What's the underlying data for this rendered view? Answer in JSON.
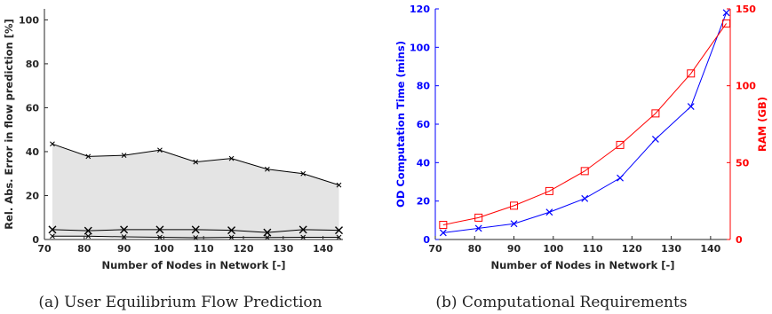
{
  "chart_data": [
    {
      "type": "area",
      "xlabel": "Number of Nodes in Network [-]",
      "ylabel": "Rel. Abs. Error in flow prediction [%]",
      "xlim": [
        70,
        145
      ],
      "ylim": [
        0,
        105
      ],
      "xticks": [
        70,
        80,
        90,
        100,
        110,
        120,
        130,
        140
      ],
      "yticks": [
        0,
        20,
        40,
        60,
        80,
        100
      ],
      "grid": false,
      "fill_color": "#e4e4e4",
      "line_color": "#000000",
      "x": [
        72,
        81,
        90,
        99,
        108,
        117,
        126,
        135,
        144
      ],
      "series": [
        {
          "marker": "x",
          "values": [
            43.5,
            37.8,
            38.3,
            40.7,
            35.3,
            36.9,
            32.0,
            30.0,
            24.8
          ]
        },
        {
          "marker": "x",
          "values": [
            4.5,
            4.0,
            4.5,
            4.5,
            4.5,
            4.2,
            3.2,
            4.5,
            4.2
          ]
        },
        {
          "marker": "x",
          "values": [
            1.5,
            1.5,
            1.2,
            1.0,
            0.8,
            1.0,
            0.9,
            1.0,
            1.0
          ]
        }
      ],
      "caption": "(a) User Equilibrium Flow Prediction"
    },
    {
      "type": "line",
      "xlabel": "Number of Nodes in Network [-]",
      "xlim": [
        70,
        145
      ],
      "xticks": [
        70,
        80,
        90,
        100,
        110,
        120,
        130,
        140
      ],
      "grid": false,
      "x": [
        72,
        81,
        90,
        99,
        108,
        117,
        126,
        135,
        144
      ],
      "left_axis": {
        "label": "OD Computation Time (mins)",
        "ylim": [
          0,
          120
        ],
        "ticks": [
          0,
          20,
          40,
          60,
          80,
          100,
          120
        ],
        "color": "#0000ff"
      },
      "right_axis": {
        "label": "RAM (GB)",
        "ylim": [
          0,
          150
        ],
        "ticks": [
          0,
          50,
          100,
          150
        ],
        "color": "#ff0000"
      },
      "series": [
        {
          "axis": "left",
          "marker": "x",
          "color": "#0000ff",
          "values": [
            3.5,
            5.8,
            8.2,
            14.2,
            21.3,
            32.0,
            52.2,
            69.2,
            118.0
          ]
        },
        {
          "axis": "right",
          "marker": "square",
          "color": "#ff0000",
          "values": [
            9.5,
            14.2,
            22.0,
            31.5,
            44.5,
            61.5,
            82.0,
            108.0,
            140.5
          ]
        }
      ],
      "caption": "(b) Computational Requirements"
    }
  ]
}
